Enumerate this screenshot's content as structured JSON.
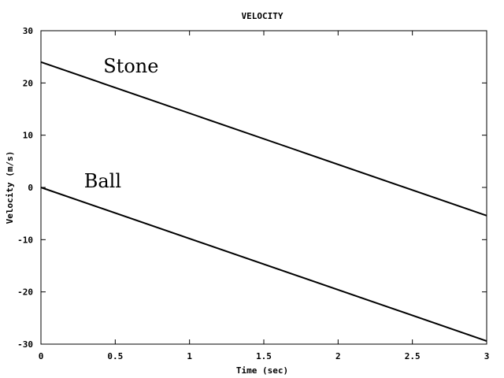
{
  "chart_data": {
    "type": "line",
    "title": "VELOCITY",
    "xlabel": "Time (sec)",
    "ylabel": "Velocity (m/s)",
    "xlim": [
      0,
      3
    ],
    "ylim": [
      -30,
      30
    ],
    "x_ticks": [
      "0",
      "0.5",
      "1",
      "1.5",
      "2",
      "2.5",
      "3"
    ],
    "y_ticks": [
      "30",
      "20",
      "10",
      "0",
      "-10",
      "-20",
      "-30"
    ],
    "grid": false,
    "series": [
      {
        "name": "Stone",
        "x": [
          0,
          3
        ],
        "y": [
          24,
          -5.4
        ],
        "label_at": [
          0.42,
          22
        ]
      },
      {
        "name": "Ball",
        "x": [
          0,
          3
        ],
        "y": [
          0,
          -29.4
        ],
        "label_at": [
          0.29,
          0
        ]
      }
    ]
  }
}
